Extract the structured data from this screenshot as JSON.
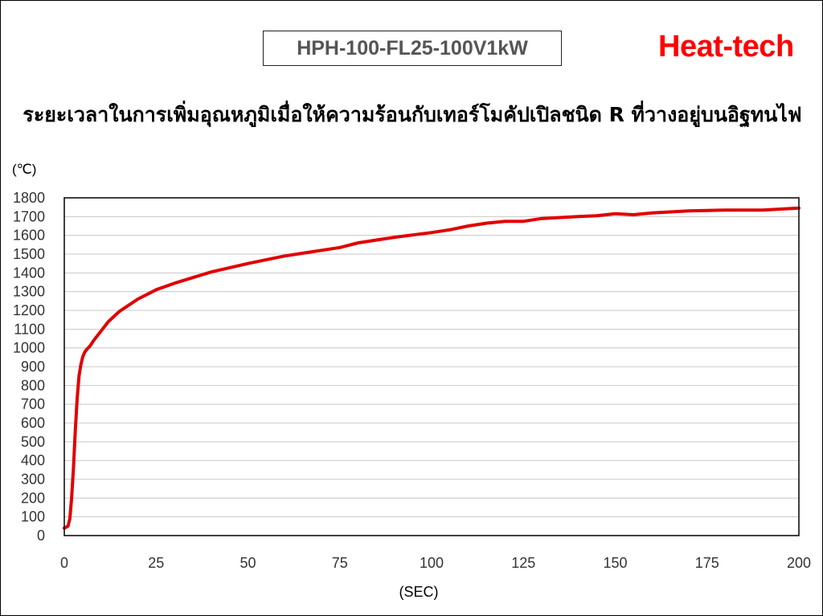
{
  "header": {
    "model": "HPH-100-FL25-100V1kW",
    "brand": "Heat-tech",
    "brand_color": "#ff0000"
  },
  "chart_data": {
    "type": "line",
    "title": "ระยะเวลาในการเพิ่มอุณหภูมิเมื่อให้ความร้อนกับเทอร์โมคัปเปิลชนิด R ที่วางอยู่บนอิฐทนไฟ",
    "ylabel": "(℃)",
    "xlabel": "(SEC)",
    "xlim": [
      0,
      200
    ],
    "ylim": [
      0,
      1800
    ],
    "xticks": [
      0,
      25,
      50,
      75,
      100,
      125,
      150,
      175,
      200
    ],
    "yticks": [
      0,
      100,
      200,
      300,
      400,
      500,
      600,
      700,
      800,
      900,
      1000,
      1100,
      1200,
      1300,
      1400,
      1500,
      1600,
      1700,
      1800
    ],
    "grid": true,
    "legend": "none",
    "series": [
      {
        "color": "#e00000",
        "x": [
          0,
          1,
          1.5,
          2,
          2.5,
          3,
          3.5,
          4,
          4.5,
          5,
          5.5,
          6,
          7,
          8,
          10,
          12,
          15,
          20,
          25,
          30,
          35,
          40,
          50,
          60,
          70,
          75,
          80,
          90,
          100,
          105,
          110,
          115,
          120,
          125,
          130,
          135,
          140,
          145,
          150,
          155,
          160,
          170,
          180,
          190,
          200
        ],
        "y": [
          40,
          50,
          90,
          200,
          360,
          560,
          730,
          850,
          910,
          950,
          975,
          990,
          1010,
          1040,
          1090,
          1140,
          1195,
          1260,
          1310,
          1345,
          1375,
          1405,
          1450,
          1490,
          1520,
          1535,
          1560,
          1590,
          1615,
          1630,
          1650,
          1665,
          1675,
          1675,
          1690,
          1695,
          1700,
          1705,
          1715,
          1710,
          1720,
          1730,
          1735,
          1735,
          1745
        ]
      }
    ]
  }
}
